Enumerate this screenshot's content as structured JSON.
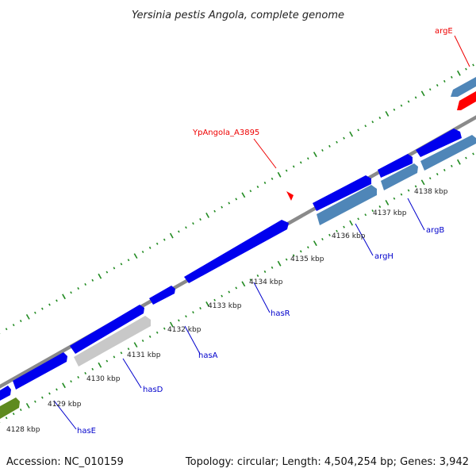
{
  "title": "Yersinia pestis Angola, complete genome",
  "footer": {
    "accession": "Accession: NC_010159",
    "summary": "Topology: circular; Length: 4,504,254 bp; Genes: 3,942"
  },
  "colors": {
    "backbone": "#8a8a8a",
    "tick": "#228b22",
    "label_line_blue": "#0000cc",
    "label_line_red": "#ee0000",
    "feature_blue": "#0000ee",
    "feature_steel": "#4f86b8",
    "feature_red": "#ff0000",
    "feature_grey": "#c8c8c8",
    "feature_olive": "#5e8a1f",
    "text": "#222222"
  },
  "kbp_ticks": [
    "4128 kbp",
    "4129 kbp",
    "4130 kbp",
    "4131 kbp",
    "4132 kbp",
    "4133 kbp",
    "4134 kbp",
    "4135 kbp",
    "4136 kbp",
    "4137 kbp",
    "4138 kbp"
  ],
  "gene_labels": [
    {
      "name": "argE",
      "color": "red"
    },
    {
      "name": "YpAngola_A3895",
      "color": "red"
    },
    {
      "name": "argB",
      "color": "blue"
    },
    {
      "name": "argH",
      "color": "blue"
    },
    {
      "name": "hasR",
      "color": "blue"
    },
    {
      "name": "hasA",
      "color": "blue"
    },
    {
      "name": "hasD",
      "color": "blue"
    },
    {
      "name": "hasE",
      "color": "blue"
    }
  ]
}
